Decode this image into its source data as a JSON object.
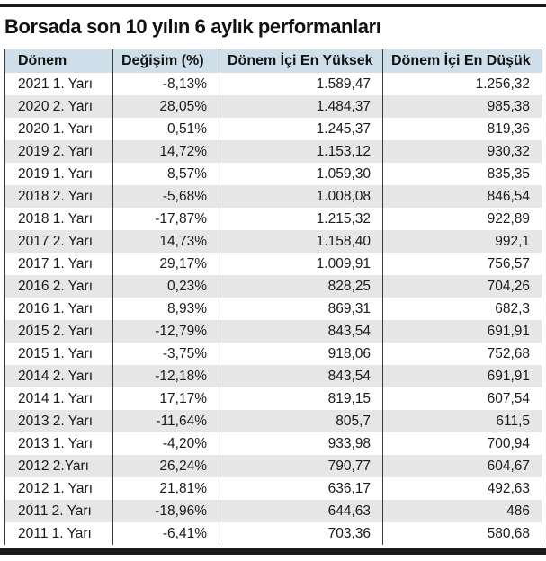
{
  "title": "Borsada son 10 yılın 6 aylık performanları",
  "colors": {
    "header_bg": "#cfdfe9",
    "stripe_bg": "#e6e6e6",
    "rule": "#1a1a1a",
    "border": "#3a3a3a",
    "text": "#1a1a1a"
  },
  "chart_data": {
    "type": "table",
    "title": "Borsada son 10 yılın 6 aylık performanları",
    "columns": [
      "Dönem",
      "Değişim (%)",
      "Dönem İçi En Yüksek",
      "Dönem İçi En Düşük"
    ],
    "rows": [
      [
        "2021 1. Yarı",
        "-8,13%",
        "1.589,47",
        "1.256,32"
      ],
      [
        "2020 2. Yarı",
        "28,05%",
        "1.484,37",
        "985,38"
      ],
      [
        "2020 1. Yarı",
        "0,51%",
        "1.245,37",
        "819,36"
      ],
      [
        "2019 2. Yarı",
        "14,72%",
        "1.153,12",
        "930,32"
      ],
      [
        "2019 1. Yarı",
        "8,57%",
        "1.059,30",
        "835,35"
      ],
      [
        "2018 2. Yarı",
        "-5,68%",
        "1.008,08",
        "846,54"
      ],
      [
        "2018 1. Yarı",
        "-17,87%",
        "1.215,32",
        "922,89"
      ],
      [
        "2017 2. Yarı",
        "14,73%",
        "1.158,40",
        "992,1"
      ],
      [
        "2017 1. Yarı",
        "29,17%",
        "1.009,91",
        "756,57"
      ],
      [
        "2016 2. Yarı",
        "0,23%",
        "828,25",
        "704,26"
      ],
      [
        "2016 1. Yarı",
        "8,93%",
        "869,31",
        "682,3"
      ],
      [
        "2015 2. Yarı",
        "-12,79%",
        "843,54",
        "691,91"
      ],
      [
        "2015 1. Yarı",
        "-3,75%",
        "918,06",
        "752,68"
      ],
      [
        "2014 2. Yarı",
        "-12,18%",
        "843,54",
        "691,91"
      ],
      [
        "2014 1. Yarı",
        "17,17%",
        "819,15",
        "607,54"
      ],
      [
        "2013 2. Yarı",
        "-11,64%",
        "805,7",
        "611,5"
      ],
      [
        "2013 1. Yarı",
        "-4,20%",
        "933,98",
        "700,94"
      ],
      [
        "2012 2.Yarı",
        "26,24%",
        "790,77",
        "604,67"
      ],
      [
        "2012 1. Yarı",
        "21,81%",
        "636,17",
        "492,63"
      ],
      [
        "2011 2. Yarı",
        "-18,96%",
        "644,63",
        "486"
      ],
      [
        "2011 1. Yarı",
        "-6,41%",
        "703,36",
        "580,68"
      ]
    ]
  }
}
